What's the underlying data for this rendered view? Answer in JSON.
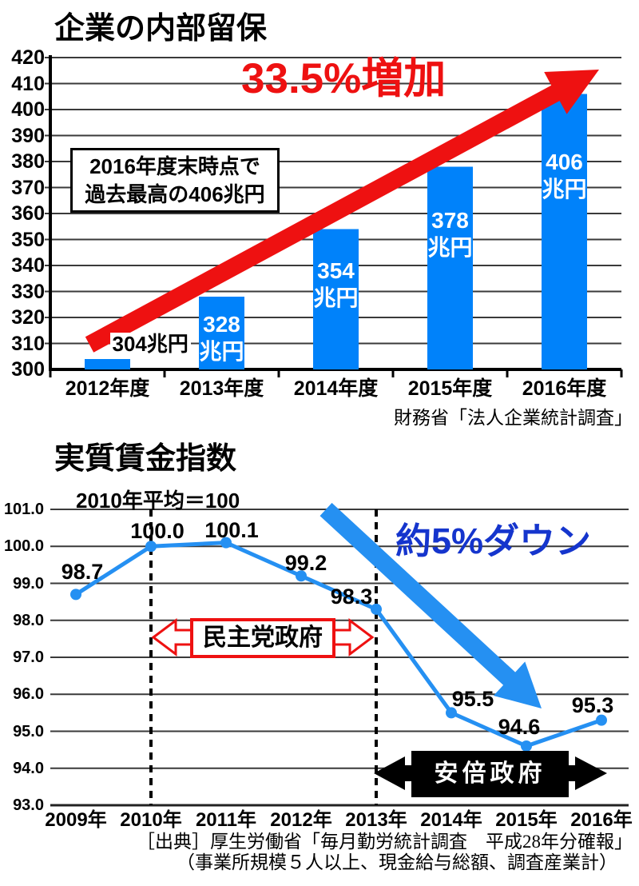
{
  "colors": {
    "bar_blue": "#0082fa",
    "line_blue": "#2590f2",
    "red": "#ee1111",
    "deep_blue": "#1535cd",
    "gridline": "#3a3a3a",
    "black": "#000000",
    "white": "#ffffff"
  },
  "charts": [
    {
      "title": "企業の内部留保",
      "source": "財務省「法人企業統計調査」",
      "annotation_box": {
        "line1": "2016年度末時点で",
        "line2": "過去最高の406兆円"
      },
      "increase_label": "33.5%増加",
      "chart_data": {
        "type": "bar",
        "categories": [
          "2012年度",
          "2013年度",
          "2014年度",
          "2015年度",
          "2016年度"
        ],
        "values": [
          304,
          328,
          354,
          378,
          406
        ],
        "unit": "兆円",
        "bar_labels": [
          {
            "text": "304兆円",
            "inside": false
          },
          {
            "line1": "328",
            "line2": "兆円",
            "inside": true
          },
          {
            "line1": "354",
            "line2": "兆円",
            "inside": true
          },
          {
            "line1": "378",
            "line2": "兆円",
            "inside": true
          },
          {
            "line1": "406",
            "line2": "兆円",
            "inside": true
          }
        ],
        "ylim": [
          300,
          420
        ],
        "yticks": [
          300,
          310,
          320,
          330,
          340,
          350,
          360,
          370,
          380,
          390,
          400,
          410,
          420
        ],
        "grid": true,
        "annotation_arrow": "increase"
      }
    },
    {
      "title": "実質賃金指数",
      "note": "2010年平均＝100",
      "down_label": "約5%ダウン",
      "box_democratic": "民主党政府",
      "box_abe": "安倍政府",
      "source_line1": "［出典］厚生労働省「毎月勤労統計調査　平成28年分確報」",
      "source_line2": "（事業所規模５人以上、現金給与総額、調査産業計）",
      "chart_data": {
        "type": "line",
        "categories": [
          "2009年",
          "2010年",
          "2011年",
          "2012年",
          "2013年",
          "2014年",
          "2015年",
          "2016年"
        ],
        "values": [
          98.7,
          100.0,
          100.1,
          99.2,
          98.3,
          95.5,
          94.6,
          95.3
        ],
        "point_labels": [
          "98.7",
          "100.0",
          "100.1",
          "99.2",
          "98.3",
          "95.5",
          "94.6",
          "95.3"
        ],
        "ylim": [
          93.0,
          101.0
        ],
        "yticks": [
          "93.0",
          "94.0",
          "95.0",
          "96.0",
          "97.0",
          "98.0",
          "99.0",
          "100.0",
          "101.0"
        ],
        "grid": true,
        "dashed_marker_years": [
          "2010年",
          "2013年"
        ],
        "annotation_arrow": "down"
      }
    }
  ]
}
